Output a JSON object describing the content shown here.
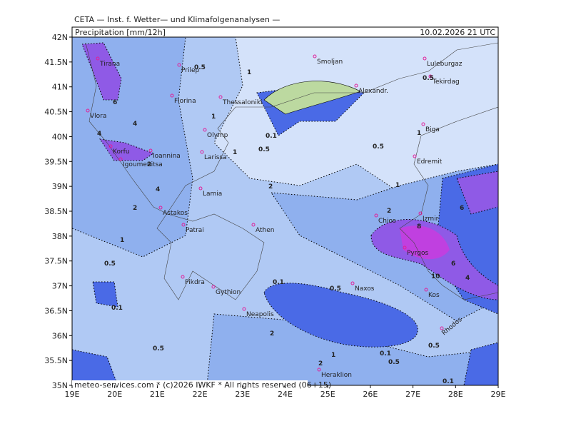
{
  "header": {
    "title": "CETA — Inst. f. Wetter— und Klimafolgenanalysen —",
    "field": "Precipitation [mm/12h]",
    "valid": "10.02.2026  21  UTC"
  },
  "footer": "meteo-services.com * (c)2026 IWKF * All rights reserved (06+15)",
  "lat_labels": [
    "42N",
    "41.5N",
    "41N",
    "40.5N",
    "40N",
    "39.5N",
    "39N",
    "38.5N",
    "38N",
    "37.5N",
    "37N",
    "36.5N",
    "36N",
    "35.5N",
    "35N"
  ],
  "lon_labels": [
    "19E",
    "20E",
    "21E",
    "22E",
    "23E",
    "24E",
    "25E",
    "26E",
    "27E",
    "28E",
    "29E"
  ],
  "cities": [
    "Tirana",
    "Prilep",
    "Smoljan",
    "Luleburgaz",
    "Florina",
    "Thessaloniki",
    "Alexandr.",
    "Tekirdag",
    "Vlora",
    "Olymp",
    "Biga",
    "Korfu",
    "Ioannina",
    "Larissa",
    "Igoumenitsa",
    "Edremit",
    "Lamia",
    "Astakos",
    "Izmir",
    "Chios",
    "Patrai",
    "Athen",
    "Pyrgos",
    "Pikdra",
    "Naxos",
    "Kos",
    "Gythion",
    "Neapolis",
    "Heraklion",
    "Rhodos"
  ],
  "contour_labels": [
    "0.5",
    "1",
    "0.5",
    "6",
    "4",
    "1",
    "0.1",
    "0.5",
    "0.5",
    "1",
    "4",
    "2",
    "2",
    "4",
    "2",
    "8",
    "6",
    "1",
    "0.5",
    "10",
    "6",
    "4",
    "0.1",
    "0.5",
    "0.1",
    "2",
    "0.5",
    "1",
    "2",
    "0.1",
    "0.5",
    "0.5",
    "0.1",
    "1",
    "1",
    "2"
  ]
}
